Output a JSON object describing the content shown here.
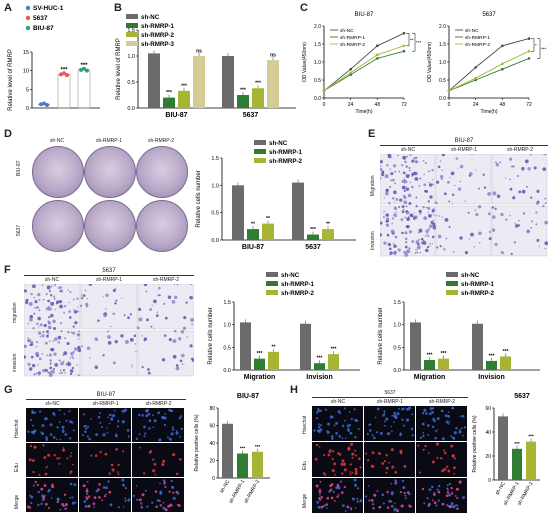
{
  "panel_letters": {
    "A": "A",
    "B": "B",
    "C": "C",
    "D": "D",
    "E": "E",
    "F": "F",
    "G": "G",
    "H": "H"
  },
  "colors": {
    "gray": "#6b6b6b",
    "green": "#2e7d32",
    "olive": "#a7b534",
    "beige": "#d4cc94",
    "blue": "#4a7bd0",
    "red": "#e35b5b",
    "teal": "#2aa37a"
  },
  "chart_data": [
    {
      "id": "A",
      "type": "scatter",
      "ylabel": "Relative level of RMRP",
      "ylim": [
        0,
        15
      ],
      "yticks": [
        0,
        5,
        10,
        15
      ],
      "legend": [
        "SV-HUC-1",
        "5637",
        "BIU-87"
      ],
      "series": [
        {
          "name": "SV-HUC-1",
          "values": [
            1.0,
            1.2,
            0.8
          ]
        },
        {
          "name": "5637",
          "values": [
            9.0,
            9.3,
            8.8
          ]
        },
        {
          "name": "BIU-87",
          "values": [
            10.2,
            10.5,
            10.0
          ]
        }
      ],
      "sig": [
        "",
        "***",
        "***"
      ]
    },
    {
      "id": "B",
      "type": "bar",
      "ylabel": "Relative level of RMRP",
      "ylim": [
        0,
        1.5
      ],
      "yticks": [
        "0.0",
        "0.5",
        "1.0",
        "1.5"
      ],
      "categories": [
        "BIU-87",
        "5637"
      ],
      "series": [
        {
          "name": "sh-NC",
          "values": [
            1.05,
            1.0
          ]
        },
        {
          "name": "sh-RMRP-1",
          "values": [
            0.2,
            0.25
          ]
        },
        {
          "name": "sh-RMRP-2",
          "values": [
            0.33,
            0.38
          ]
        },
        {
          "name": "sh-RMRP-3",
          "values": [
            1.0,
            0.92
          ]
        }
      ],
      "sig": [
        [
          "",
          "***",
          "***",
          "ns"
        ],
        [
          "",
          "***",
          "***",
          "ns"
        ]
      ]
    },
    {
      "id": "C1",
      "type": "line",
      "title": "BIU-87",
      "xlabel": "Time(h)",
      "ylabel": "OD Value(450nm)",
      "x": [
        0,
        24,
        48,
        72
      ],
      "ylim": [
        0,
        2.0
      ],
      "yticks": [
        "0.0",
        "0.5",
        "1.0",
        "1.5",
        "2.0"
      ],
      "series": [
        {
          "name": "sh-NC",
          "values": [
            0.2,
            0.8,
            1.45,
            1.8
          ]
        },
        {
          "name": "sh-RMRP-1",
          "values": [
            0.2,
            0.65,
            1.1,
            1.3
          ]
        },
        {
          "name": "sh-RMRP-2",
          "values": [
            0.2,
            0.7,
            1.2,
            1.45
          ]
        }
      ],
      "sig": [
        "**",
        "***"
      ]
    },
    {
      "id": "C2",
      "type": "line",
      "title": "5637",
      "xlabel": "Time(h)",
      "ylabel": "OD Value(450nm)",
      "x": [
        0,
        24,
        48,
        72
      ],
      "ylim": [
        0,
        2.0
      ],
      "yticks": [
        "0.0",
        "0.5",
        "1.0",
        "1.5",
        "2.0"
      ],
      "series": [
        {
          "name": "sh-NC",
          "values": [
            0.2,
            0.85,
            1.45,
            1.65
          ]
        },
        {
          "name": "sh-RMRP-1",
          "values": [
            0.2,
            0.5,
            0.8,
            1.1
          ]
        },
        {
          "name": "sh-RMRP-2",
          "values": [
            0.2,
            0.55,
            0.95,
            1.3
          ]
        }
      ],
      "sig": [
        "*",
        "***"
      ]
    },
    {
      "id": "D",
      "type": "bar",
      "ylabel": "Relative cells number",
      "ylim": [
        0,
        1.5
      ],
      "yticks": [
        "0.0",
        "0.5",
        "1.0",
        "1.5"
      ],
      "categories": [
        "BIU-87",
        "5637"
      ],
      "series": [
        {
          "name": "sh-NC",
          "values": [
            1.0,
            1.05
          ]
        },
        {
          "name": "sh-RMRP-1",
          "values": [
            0.2,
            0.1
          ]
        },
        {
          "name": "sh-RMRP-2",
          "values": [
            0.3,
            0.2
          ]
        }
      ],
      "sig": [
        [
          "",
          "**",
          "**"
        ],
        [
          "",
          "***",
          "**"
        ]
      ]
    },
    {
      "id": "F1",
      "type": "bar",
      "ylabel": "Relative cells number",
      "ylim": [
        0,
        1.5
      ],
      "yticks": [
        "0.0",
        "0.5",
        "1.0",
        "1.5"
      ],
      "categories": [
        "Migration",
        "Invision"
      ],
      "series": [
        {
          "name": "sh-NC",
          "values": [
            1.05,
            1.02
          ]
        },
        {
          "name": "sh-RMRP-1",
          "values": [
            0.25,
            0.15
          ]
        },
        {
          "name": "sh-RMRP-2",
          "values": [
            0.4,
            0.35
          ]
        }
      ],
      "sig": [
        [
          "",
          "***",
          "**"
        ],
        [
          "",
          "***",
          "***"
        ]
      ]
    },
    {
      "id": "F2",
      "type": "bar",
      "ylabel": "Relative cells number",
      "ylim": [
        0,
        1.5
      ],
      "yticks": [
        "0.0",
        "0.5",
        "1.0",
        "1.5"
      ],
      "categories": [
        "Migration",
        "Invision"
      ],
      "series": [
        {
          "name": "sh-NC",
          "values": [
            1.05,
            1.02
          ]
        },
        {
          "name": "sh-RMRP-1",
          "values": [
            0.22,
            0.2
          ]
        },
        {
          "name": "sh-RMRP-2",
          "values": [
            0.25,
            0.3
          ]
        }
      ],
      "sig": [
        [
          "",
          "***",
          "***"
        ],
        [
          "",
          "***",
          "***"
        ]
      ]
    },
    {
      "id": "G",
      "type": "bar",
      "title": "BIU-87",
      "ylabel": "Relative positive cells (%)",
      "ylim": [
        0,
        80
      ],
      "yticks": [
        "0",
        "20",
        "40",
        "60",
        "80"
      ],
      "categories": [
        "sh-NC",
        "sh-RMRP-1",
        "sh-RMRP-2"
      ],
      "values": [
        62,
        28,
        30
      ],
      "sig": [
        "",
        "***",
        "***"
      ]
    },
    {
      "id": "H",
      "type": "bar",
      "title": "5637",
      "ylabel": "Relative positive cells (%)",
      "ylim": [
        0,
        60
      ],
      "yticks": [
        "0",
        "20",
        "40",
        "60"
      ],
      "categories": [
        "sh-NC",
        "sh-RMRP-1",
        "sh-RMRP-2"
      ],
      "values": [
        53,
        26,
        32
      ],
      "sig": [
        "",
        "***",
        "***"
      ]
    }
  ],
  "panel_d": {
    "col_labels": [
      "sh-NC",
      "sh-RMRP-1",
      "sh-RMRP-2"
    ],
    "row_labels": [
      "BIU-87",
      "5637"
    ]
  },
  "panel_e": {
    "title": "BIU-87",
    "col_labels": [
      "sh-NC",
      "sh-RMRP-1",
      "sh-RMRP-2"
    ],
    "row_labels": [
      "Migration",
      "Invasion"
    ]
  },
  "panel_f": {
    "title": "5637",
    "col_labels": [
      "sh-NC",
      "sh-RMRP-1",
      "sh-RMRP-2"
    ],
    "row_labels": [
      "migration",
      "invasion"
    ]
  },
  "panel_g": {
    "title": "BIU-87",
    "col_labels": [
      "sh-NC",
      "sh-RMRP-1",
      "sh-RMRP-2"
    ],
    "row_labels": [
      "Hoechst",
      "Edu",
      "Merge"
    ]
  },
  "panel_h": {
    "title": "5637",
    "col_labels": [
      "sh-NC",
      "sh-RMRP-1",
      "sh-RMRP-2"
    ],
    "row_labels": [
      "Hoechst",
      "Edu",
      "Merge"
    ]
  }
}
